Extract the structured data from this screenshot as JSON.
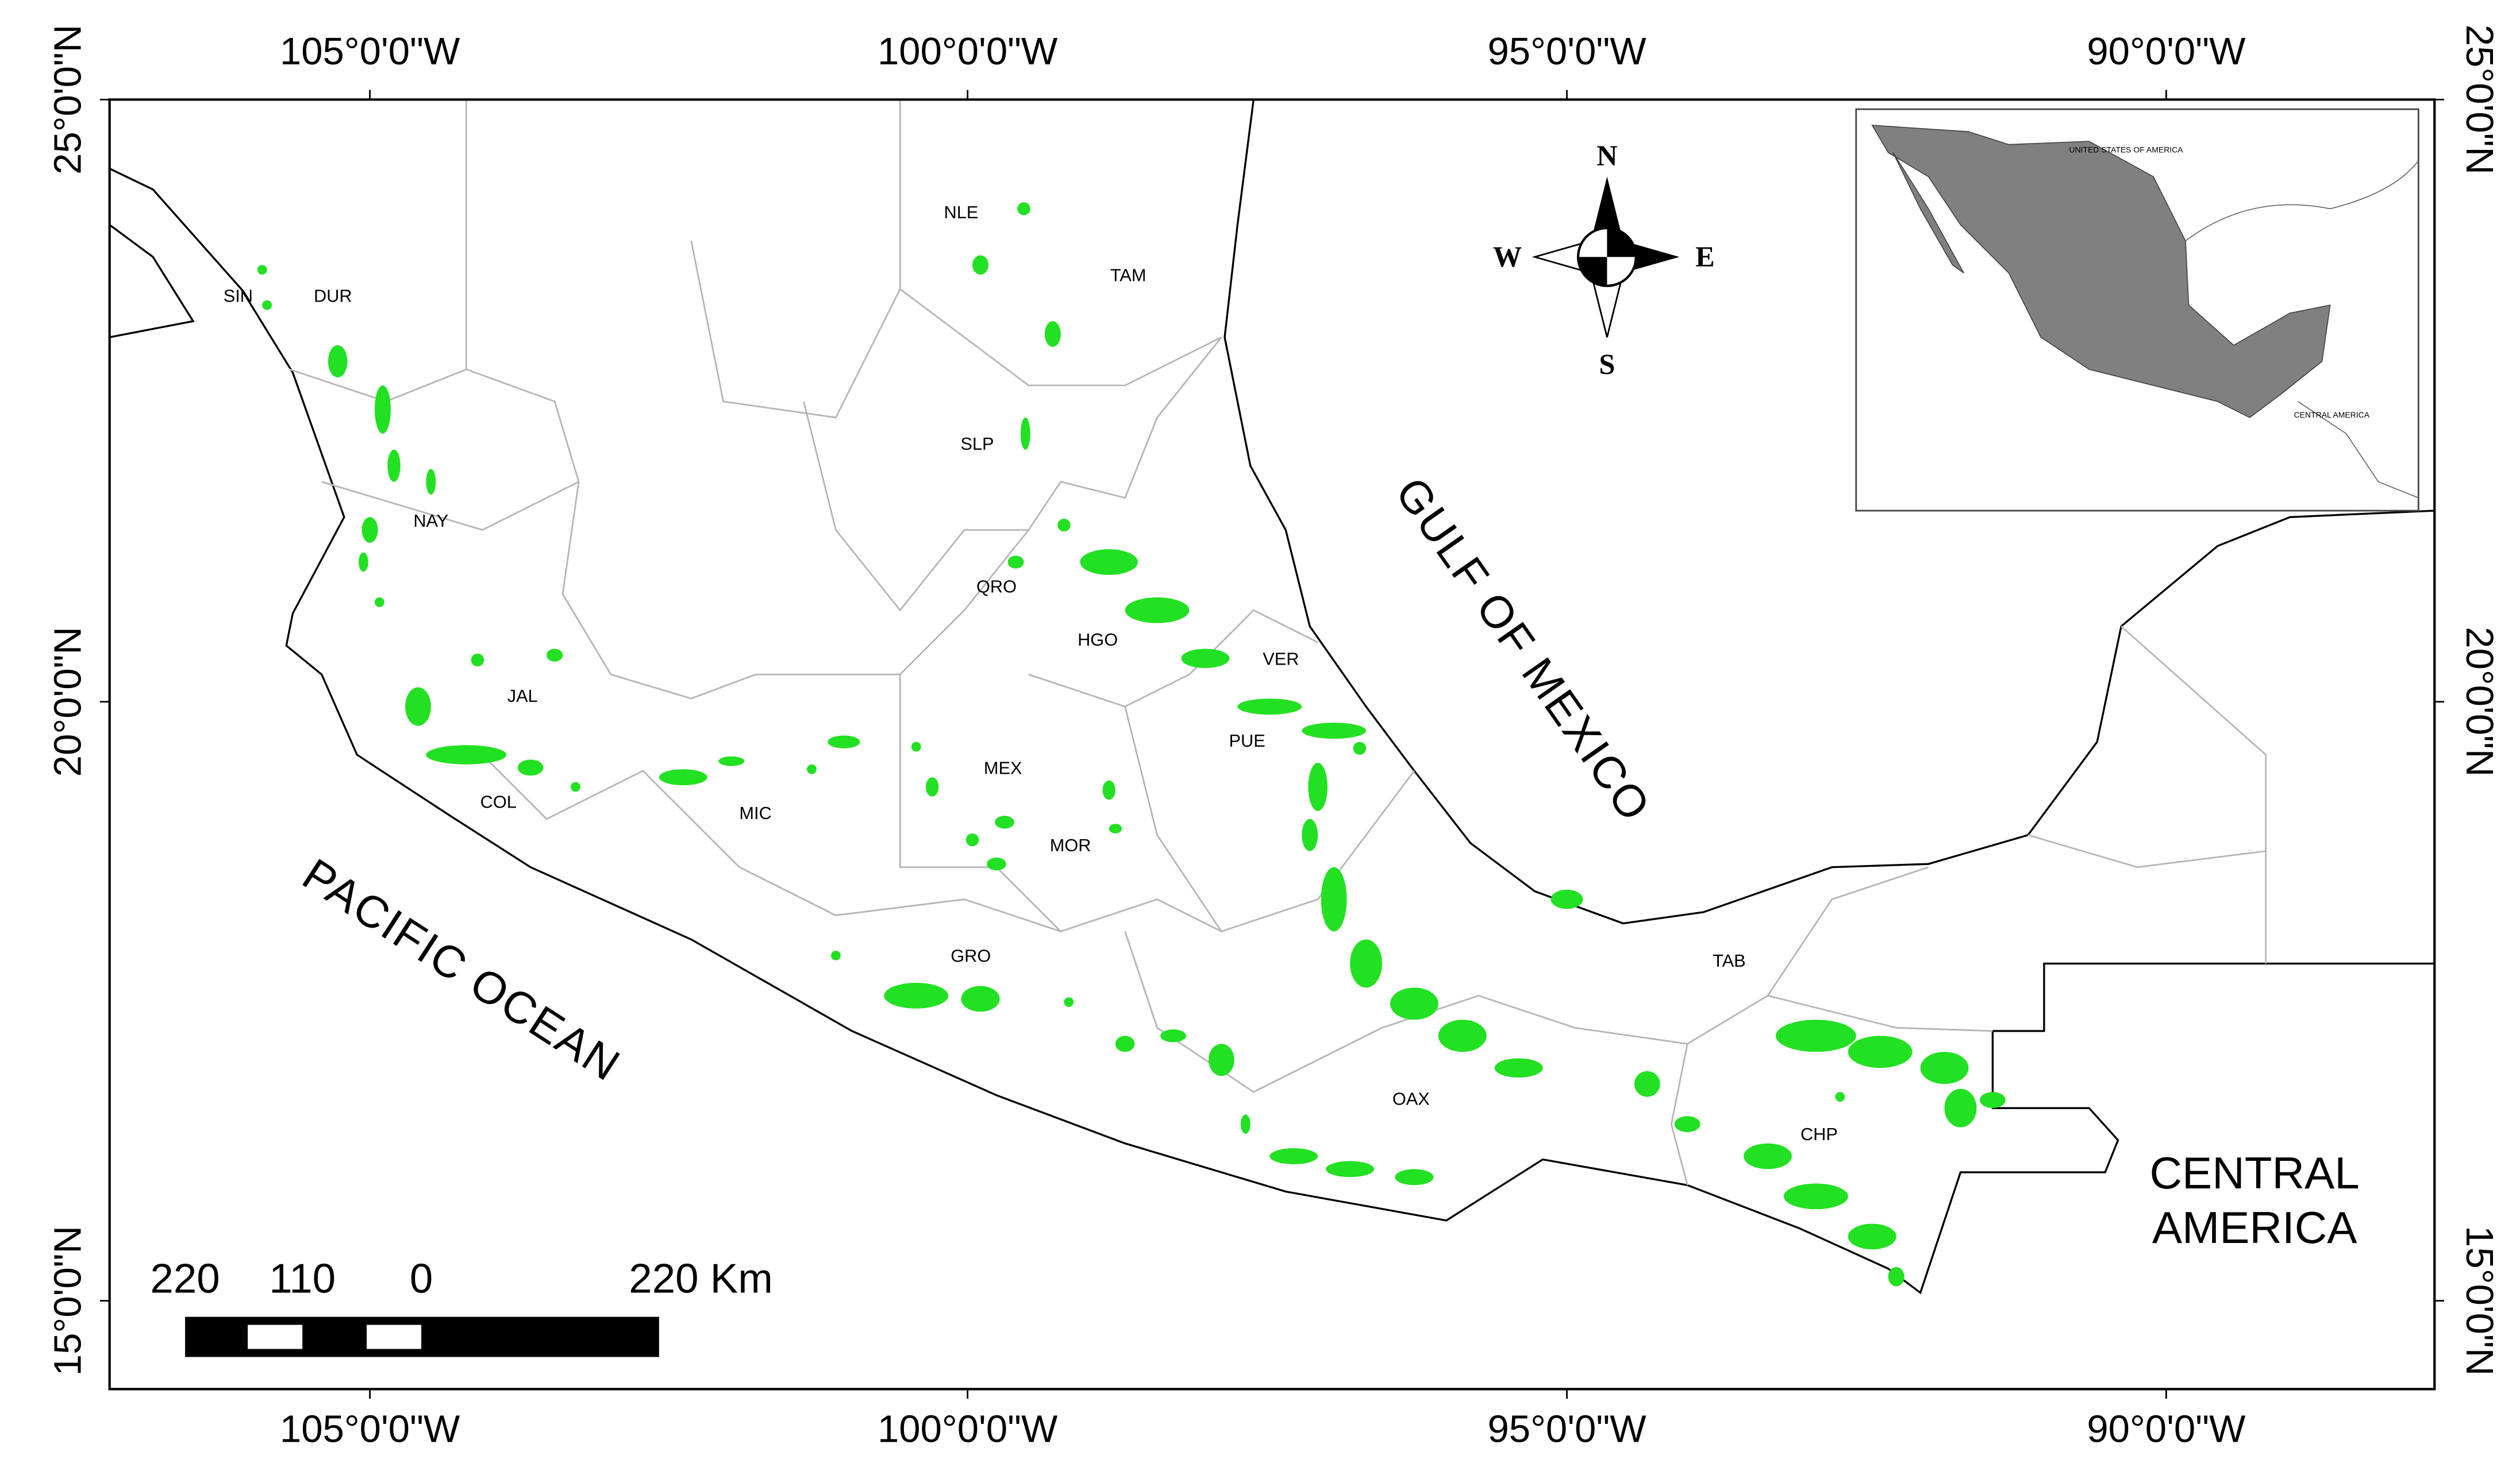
{
  "map": {
    "top_axis_labels": [
      "105°0'0\"W",
      "100°0'0\"W",
      "95°0'0\"W",
      "90°0'0\"W"
    ],
    "bottom_axis_labels": [
      "105°0'0\"W",
      "100°0'0\"W",
      "95°0'0\"W",
      "90°0'0\"W"
    ],
    "left_axis_labels": [
      "25°0'0\"N",
      "20°0'0\"N",
      "15°0'0\"N"
    ],
    "right_axis_labels": [
      "25°0'0\"N",
      "20°0'0\"N",
      "15°0'0\"N"
    ],
    "state_labels": [
      "SIN",
      "DUR",
      "NLE",
      "TAM",
      "SLP",
      "NAY",
      "QRO",
      "HGO",
      "VER",
      "JAL",
      "PUE",
      "MEX",
      "COL",
      "MIC",
      "MOR",
      "GRO",
      "TAB",
      "OAX",
      "CHP"
    ],
    "water_labels": [
      "GULF OF MEXICO",
      "PACIFIC OCEAN"
    ],
    "region_labels": [
      "CENTRAL",
      "AMERICA"
    ],
    "compass": [
      "N",
      "S",
      "W",
      "E"
    ],
    "inset_labels": [
      "UNITED STATES OF AMERICA",
      "CENTRAL AMERICA"
    ],
    "scale_bar": [
      "220",
      "110",
      "0",
      "220 Km"
    ]
  }
}
